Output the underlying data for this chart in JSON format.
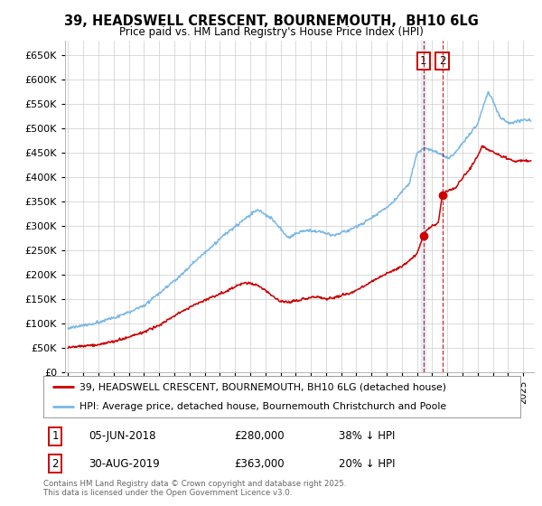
{
  "title": "39, HEADSWELL CRESCENT, BOURNEMOUTH,  BH10 6LG",
  "subtitle": "Price paid vs. HM Land Registry's House Price Index (HPI)",
  "ylabel_ticks": [
    "£0",
    "£50K",
    "£100K",
    "£150K",
    "£200K",
    "£250K",
    "£300K",
    "£350K",
    "£400K",
    "£450K",
    "£500K",
    "£550K",
    "£600K",
    "£650K"
  ],
  "ytick_values": [
    0,
    50000,
    100000,
    150000,
    200000,
    250000,
    300000,
    350000,
    400000,
    450000,
    500000,
    550000,
    600000,
    650000
  ],
  "ylim": [
    0,
    680000
  ],
  "xlim_start": 1994.8,
  "xlim_end": 2025.7,
  "hpi_color": "#7ab8e8",
  "price_color": "#cc0000",
  "vline1_color": "#cc0000",
  "vline2_color": "#cc0000",
  "vband1_color": "#d8eaf8",
  "marker1_x": 2018.43,
  "marker1_y": 280000,
  "marker2_x": 2019.66,
  "marker2_y": 363000,
  "legend1_label": "39, HEADSWELL CRESCENT, BOURNEMOUTH, BH10 6LG (detached house)",
  "legend2_label": "HPI: Average price, detached house, Bournemouth Christchurch and Poole",
  "annotation1_num": "1",
  "annotation1_date": "05-JUN-2018",
  "annotation1_price": "£280,000",
  "annotation1_hpi": "38% ↓ HPI",
  "annotation2_num": "2",
  "annotation2_date": "30-AUG-2019",
  "annotation2_price": "£363,000",
  "annotation2_hpi": "20% ↓ HPI",
  "footer": "Contains HM Land Registry data © Crown copyright and database right 2025.\nThis data is licensed under the Open Government Licence v3.0.",
  "background_color": "#ffffff",
  "grid_color": "#cccccc"
}
